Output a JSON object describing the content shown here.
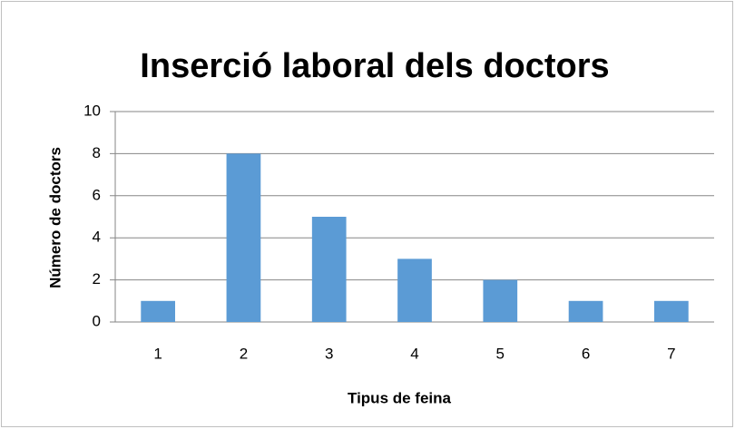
{
  "chart_data": {
    "type": "bar",
    "title": "Inserció laboral dels doctors",
    "x_label": "Tipus de feina",
    "y_label": "Número de doctors",
    "categories": [
      "1",
      "2",
      "3",
      "4",
      "5",
      "6",
      "7"
    ],
    "values": [
      1,
      8,
      5,
      3,
      2,
      1,
      1
    ],
    "color": "#5b9bd5",
    "ylim": [
      0,
      10
    ],
    "yticks": [
      0,
      2,
      4,
      6,
      8,
      10
    ],
    "grid": true
  }
}
